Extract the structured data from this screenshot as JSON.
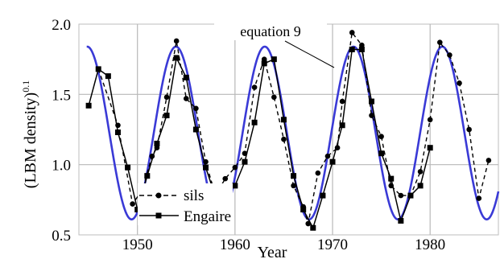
{
  "chart_data": {
    "type": "line",
    "xlabel": "Year",
    "ylabel": "(LBM density)",
    "ylabel_exponent": "0.1",
    "xlim": [
      1944,
      1987
    ],
    "ylim": [
      0.5,
      2.0
    ],
    "x_ticks": [
      1950,
      1960,
      1970,
      1980
    ],
    "x_tick_labels": [
      "1950",
      "1960",
      "1970",
      "1980"
    ],
    "y_ticks": [
      0.5,
      1.0,
      1.5,
      2.0
    ],
    "y_tick_labels": [
      "0.5",
      "1.0",
      "1.5",
      "2.0"
    ],
    "grid": true,
    "legend_position": "bottom-left",
    "annotation": {
      "text": "equation 9",
      "x": 1971.8,
      "y": 1.78
    },
    "series": [
      {
        "name": "sils",
        "style": "dashed",
        "marker": "circle",
        "color": "#000000",
        "points": [
          [
            1946.0,
            1.68
          ],
          [
            1948.0,
            1.28
          ],
          [
            1949.5,
            0.72
          ],
          [
            1950.5,
            0.82
          ],
          [
            1951.5,
            1.06
          ],
          [
            1952.0,
            1.12
          ],
          [
            1953.0,
            1.48
          ],
          [
            1954.0,
            1.88
          ],
          [
            1955.0,
            1.47
          ],
          [
            1956.0,
            1.4
          ],
          [
            1957.0,
            1.02
          ],
          [
            1958.0,
            0.78
          ],
          [
            1959.0,
            0.9
          ],
          [
            1960.0,
            0.98
          ],
          [
            1961.0,
            1.08
          ],
          [
            1962.0,
            1.55
          ],
          [
            1963.0,
            1.75
          ],
          [
            1964.0,
            1.48
          ],
          [
            1965.0,
            1.18
          ],
          [
            1966.0,
            0.85
          ],
          [
            1967.0,
            0.7
          ],
          [
            1967.5,
            0.58
          ],
          [
            1968.5,
            0.94
          ],
          [
            1969.5,
            1.06
          ],
          [
            1970.5,
            1.12
          ],
          [
            1971.0,
            1.45
          ],
          [
            1972.0,
            1.94
          ],
          [
            1973.0,
            1.85
          ],
          [
            1974.0,
            1.35
          ],
          [
            1975.0,
            1.2
          ],
          [
            1976.0,
            0.85
          ],
          [
            1977.0,
            0.78
          ],
          [
            1978.0,
            0.78
          ],
          [
            1979.0,
            0.95
          ],
          [
            1980.0,
            1.32
          ],
          [
            1981.0,
            1.87
          ],
          [
            1982.0,
            1.78
          ],
          [
            1983.0,
            1.58
          ],
          [
            1984.0,
            1.25
          ],
          [
            1985.0,
            0.76
          ],
          [
            1986.0,
            1.03
          ]
        ]
      },
      {
        "name": "Engaire",
        "style": "solid",
        "marker": "square",
        "color": "#000000",
        "points": [
          [
            1945.0,
            1.42
          ],
          [
            1946.0,
            1.68
          ],
          [
            1947.0,
            1.63
          ],
          [
            1948.0,
            1.23
          ],
          [
            1949.0,
            0.98
          ],
          [
            1950.0,
            0.68
          ],
          [
            1951.0,
            0.92
          ],
          [
            1952.0,
            1.15
          ],
          [
            1953.0,
            1.35
          ],
          [
            1954.0,
            1.76
          ],
          [
            1955.0,
            1.62
          ],
          [
            1956.0,
            1.25
          ],
          [
            1957.0,
            0.98
          ],
          [
            1958.0,
            0.77
          ],
          [
            1959.0,
            0.82
          ],
          [
            1960.0,
            0.85
          ],
          [
            1961.0,
            1.02
          ],
          [
            1962.0,
            1.3
          ],
          [
            1963.0,
            1.72
          ],
          [
            1964.0,
            1.75
          ],
          [
            1965.0,
            1.32
          ],
          [
            1966.0,
            0.92
          ],
          [
            1967.0,
            0.68
          ],
          [
            1968.0,
            0.55
          ],
          [
            1969.0,
            0.78
          ],
          [
            1970.0,
            1.02
          ],
          [
            1971.0,
            1.28
          ],
          [
            1972.0,
            1.82
          ],
          [
            1973.0,
            1.82
          ],
          [
            1974.0,
            1.45
          ],
          [
            1975.0,
            1.08
          ],
          [
            1976.0,
            0.9
          ],
          [
            1977.0,
            0.6
          ],
          [
            1978.0,
            0.78
          ],
          [
            1979.0,
            0.85
          ],
          [
            1980.0,
            1.12
          ]
        ]
      },
      {
        "name": "equation 9",
        "style": "solid",
        "marker": "none",
        "color": "#3a3ad6",
        "function": "1.225 + 0.615*sin(2*pi*(x - 1951.675)/9.1)",
        "x_range": [
          1944.8,
          1987.0
        ]
      }
    ]
  }
}
